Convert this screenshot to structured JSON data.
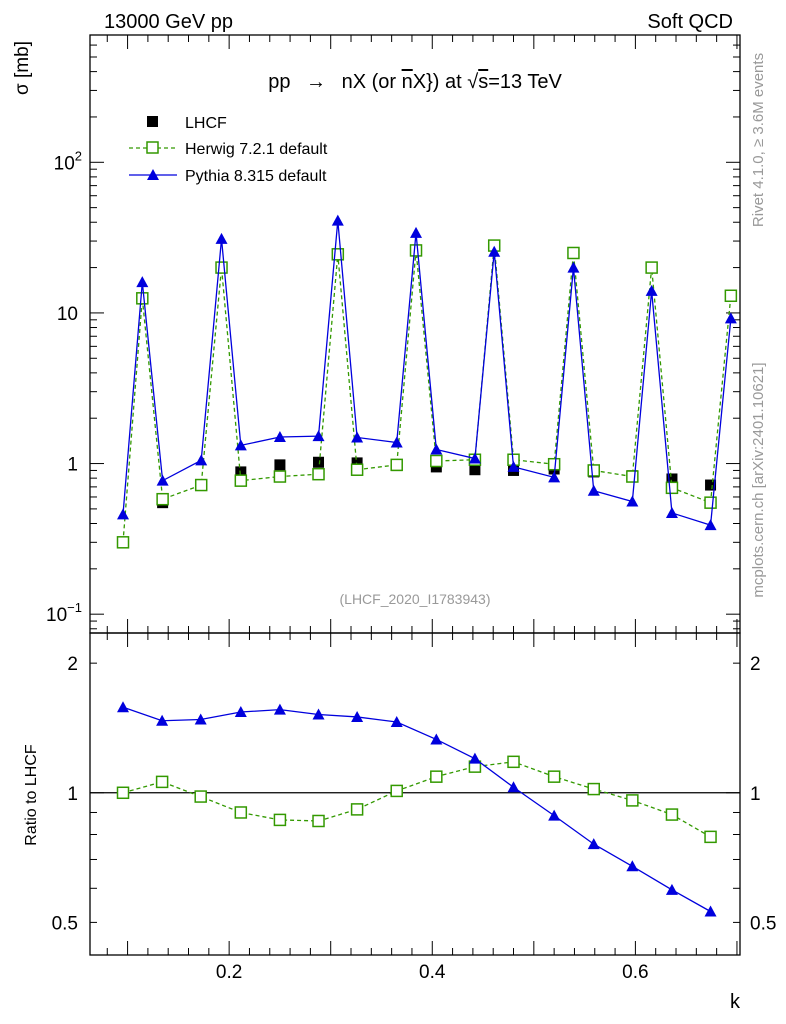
{
  "header": {
    "left": "13000 GeV pp",
    "right": "Soft QCD"
  },
  "side_labels": {
    "rivet": "Rivet 4.1.0, ≥ 3.6M events",
    "mcplots": "mcplots.cern.ch [arXiv:2401.10621]"
  },
  "colors": {
    "data": "#000000",
    "herwig": "#339900",
    "pythia": "#0000dd",
    "watermark": "#999999"
  },
  "chart_data": [
    {
      "type": "line",
      "title_parts": {
        "pre": "pp",
        "arrow": "→",
        "main": "nX (or ",
        "nbar": "n",
        "mid": "X}) at ",
        "sqrt": "√",
        "s": "s",
        "post": "=13 TeV"
      },
      "ylabel": "σ [mb]",
      "yscale": "log",
      "ylim": [
        0.075,
        700
      ],
      "xlim": [
        0.063,
        0.703
      ],
      "yticks": [
        {
          "value": 0.1,
          "base": "10",
          "exp": "−1"
        },
        {
          "value": 1,
          "label": "1"
        },
        {
          "value": 10,
          "label": "10"
        },
        {
          "value": 100,
          "base": "10",
          "exp": "2"
        }
      ],
      "watermark": "(LHCF_2020_I1783943)",
      "x": [
        0.0955,
        0.1145,
        0.1345,
        0.1725,
        0.1925,
        0.2115,
        0.25,
        0.288,
        0.307,
        0.326,
        0.365,
        0.384,
        0.404,
        0.442,
        0.461,
        0.48,
        0.52,
        0.539,
        0.559,
        0.597,
        0.616,
        0.636,
        0.674,
        0.694
      ],
      "series": [
        {
          "name": "LHCF",
          "style": "square-filled",
          "values": [
            0.3,
            null,
            0.55,
            0.72,
            null,
            0.88,
            0.98,
            1.02,
            null,
            1.01,
            0.97,
            null,
            0.95,
            0.91,
            null,
            0.9,
            0.92,
            null,
            0.88,
            0.83,
            null,
            0.79,
            0.72,
            null
          ]
        },
        {
          "name": "Herwig 7.2.1 default",
          "style": "square-open-dashed",
          "values": [
            0.3,
            12.5,
            0.58,
            0.72,
            20,
            0.77,
            0.82,
            0.85,
            24.5,
            0.91,
            0.98,
            26,
            1.04,
            1.06,
            28,
            1.06,
            0.99,
            25,
            0.9,
            0.82,
            20,
            0.69,
            0.55,
            13
          ]
        },
        {
          "name": "Pythia 8.315 default",
          "style": "triangle-filled",
          "values": [
            0.46,
            16,
            0.77,
            1.05,
            31,
            1.32,
            1.5,
            1.52,
            41,
            1.49,
            1.38,
            34,
            1.24,
            1.08,
            25.5,
            0.95,
            0.81,
            20,
            0.66,
            0.56,
            14,
            0.47,
            0.39,
            9.2
          ]
        }
      ],
      "legend": [
        "LHCF",
        "Herwig 7.2.1 default",
        "Pythia 8.315 default"
      ]
    },
    {
      "type": "line",
      "ylabel": "Ratio to LHCF",
      "xlabel": "k",
      "yscale": "log",
      "ylim": [
        0.42,
        2.35
      ],
      "xlim": [
        0.063,
        0.703
      ],
      "yticks": [
        {
          "value": 0.5,
          "label": "0.5"
        },
        {
          "value": 1,
          "label": "1"
        },
        {
          "value": 2,
          "label": "2"
        }
      ],
      "xticks": [
        {
          "value": 0.2,
          "label": "0.2"
        },
        {
          "value": 0.4,
          "label": "0.4"
        },
        {
          "value": 0.6,
          "label": "0.6"
        }
      ],
      "x": [
        0.0955,
        0.134,
        0.172,
        0.2115,
        0.25,
        0.288,
        0.326,
        0.365,
        0.404,
        0.442,
        0.48,
        0.52,
        0.559,
        0.597,
        0.636,
        0.674
      ],
      "series": [
        {
          "name": "Herwig 7.2.1 default",
          "style": "square-open-dashed",
          "values": [
            1.0,
            1.06,
            0.98,
            0.9,
            0.865,
            0.86,
            0.915,
            1.01,
            1.09,
            1.15,
            1.18,
            1.09,
            1.02,
            0.96,
            0.89,
            0.79
          ]
        },
        {
          "name": "Pythia 8.315 default",
          "style": "triangle-filled",
          "values": [
            1.58,
            1.47,
            1.48,
            1.54,
            1.56,
            1.52,
            1.5,
            1.46,
            1.33,
            1.2,
            1.03,
            0.885,
            0.76,
            0.675,
            0.595,
            0.53
          ]
        }
      ]
    }
  ]
}
